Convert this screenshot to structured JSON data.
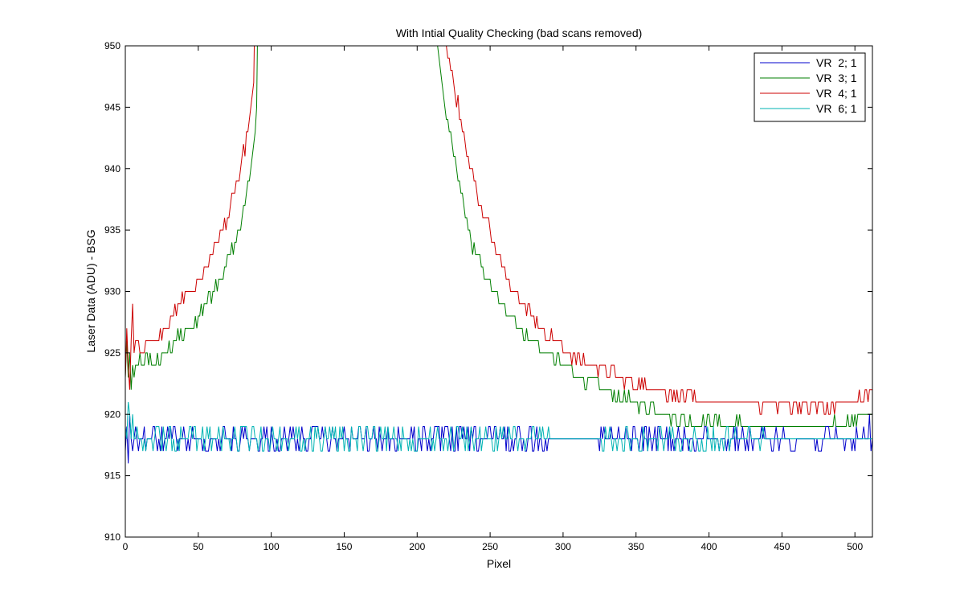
{
  "chart_data": {
    "type": "line",
    "title": "With Intial Quality Checking (bad scans removed)",
    "xlabel": "Pixel",
    "ylabel": "Laser Data (ADU) - BSG",
    "xlim": [
      0,
      512
    ],
    "ylim": [
      910,
      950
    ],
    "xticks": [
      0,
      50,
      100,
      150,
      200,
      250,
      300,
      350,
      400,
      450,
      500
    ],
    "yticks": [
      910,
      915,
      920,
      925,
      930,
      935,
      940,
      945,
      950
    ],
    "grid": false,
    "legend_position": "top-right",
    "series": [
      {
        "name": "VR  2; 1",
        "color": "#0000cc",
        "base": 918,
        "noise": "+/-1",
        "noisy_ranges": [
          [
            0,
            290
          ],
          [
            322,
            512
          ]
        ],
        "start_points": [
          [
            0,
            917
          ],
          [
            1,
            919
          ],
          [
            2,
            916
          ],
          [
            3,
            920
          ],
          [
            4,
            918
          ]
        ],
        "end_points": [
          [
            505,
            918
          ],
          [
            509,
            918
          ],
          [
            510,
            920
          ],
          [
            511,
            917
          ],
          [
            512,
            918
          ]
        ]
      },
      {
        "name": "VR  3; 1",
        "color": "#007f00",
        "points": [
          [
            0,
            923
          ],
          [
            1,
            926
          ],
          [
            2,
            923
          ],
          [
            3,
            925
          ],
          [
            4,
            922
          ],
          [
            5,
            924
          ],
          [
            6,
            923
          ],
          [
            8,
            923.5
          ],
          [
            10,
            924.5
          ],
          [
            12,
            924
          ],
          [
            14,
            925
          ],
          [
            16,
            924.5
          ],
          [
            18,
            924
          ],
          [
            20,
            924
          ],
          [
            30,
            925.5
          ],
          [
            40,
            926.5
          ],
          [
            45,
            927
          ],
          [
            50,
            928
          ],
          [
            55,
            929
          ],
          [
            60,
            930
          ],
          [
            65,
            931
          ],
          [
            70,
            932.5
          ],
          [
            75,
            934
          ],
          [
            80,
            936
          ],
          [
            85,
            939
          ],
          [
            88,
            942
          ],
          [
            91,
            946
          ],
          [
            94,
            950
          ],
          [
            214,
            950
          ],
          [
            216,
            948
          ],
          [
            220,
            944.5
          ],
          [
            225,
            941
          ],
          [
            230,
            938
          ],
          [
            235,
            935
          ],
          [
            240,
            933
          ],
          [
            245,
            931.5
          ],
          [
            250,
            930.5
          ],
          [
            255,
            929.5
          ],
          [
            260,
            928.5
          ],
          [
            265,
            928
          ],
          [
            270,
            927
          ],
          [
            275,
            926.5
          ],
          [
            280,
            926
          ],
          [
            285,
            925.5
          ],
          [
            290,
            925
          ],
          [
            295,
            924.5
          ],
          [
            300,
            924
          ],
          [
            310,
            923
          ],
          [
            320,
            922.5
          ],
          [
            330,
            922
          ],
          [
            340,
            921.5
          ],
          [
            350,
            921
          ],
          [
            360,
            920.5
          ],
          [
            370,
            920
          ],
          [
            380,
            919.5
          ],
          [
            400,
            919.3
          ],
          [
            420,
            919.2
          ],
          [
            440,
            919
          ],
          [
            460,
            919
          ],
          [
            480,
            919
          ],
          [
            500,
            919.5
          ],
          [
            505,
            920
          ],
          [
            512,
            920
          ]
        ]
      },
      {
        "name": "VR  4; 1",
        "color": "#cc0000",
        "points": [
          [
            0,
            923
          ],
          [
            1,
            927
          ],
          [
            2,
            924
          ],
          [
            3,
            922
          ],
          [
            4,
            926
          ],
          [
            5,
            929
          ],
          [
            6,
            925
          ],
          [
            8,
            926
          ],
          [
            10,
            925
          ],
          [
            15,
            926
          ],
          [
            20,
            925.5
          ],
          [
            25,
            926.5
          ],
          [
            30,
            927.5
          ],
          [
            35,
            928.5
          ],
          [
            40,
            929.5
          ],
          [
            45,
            930
          ],
          [
            50,
            931
          ],
          [
            55,
            932
          ],
          [
            60,
            933
          ],
          [
            65,
            934.5
          ],
          [
            70,
            936
          ],
          [
            75,
            938
          ],
          [
            80,
            940.5
          ],
          [
            85,
            944
          ],
          [
            88,
            947
          ],
          [
            90,
            950
          ],
          [
            220,
            950
          ],
          [
            225,
            947
          ],
          [
            230,
            944
          ],
          [
            235,
            941
          ],
          [
            240,
            938.5
          ],
          [
            245,
            936.5
          ],
          [
            250,
            935
          ],
          [
            255,
            933
          ],
          [
            260,
            931.5
          ],
          [
            265,
            930.5
          ],
          [
            270,
            929.5
          ],
          [
            275,
            928.5
          ],
          [
            280,
            928
          ],
          [
            285,
            927
          ],
          [
            290,
            926.5
          ],
          [
            295,
            926
          ],
          [
            300,
            925.5
          ],
          [
            310,
            924.5
          ],
          [
            320,
            924
          ],
          [
            330,
            923.5
          ],
          [
            340,
            923
          ],
          [
            350,
            922.5
          ],
          [
            360,
            922
          ],
          [
            370,
            921.8
          ],
          [
            380,
            921.5
          ],
          [
            400,
            921
          ],
          [
            420,
            921
          ],
          [
            440,
            920.8
          ],
          [
            460,
            920.7
          ],
          [
            480,
            920.5
          ],
          [
            500,
            921
          ],
          [
            512,
            922
          ]
        ]
      },
      {
        "name": "VR  6; 1",
        "color": "#00b3b3",
        "base": 918,
        "noise": "+/-1",
        "noisy_ranges": [
          [
            0,
            290
          ],
          [
            322,
            440
          ]
        ],
        "start_points": [
          [
            0,
            919
          ],
          [
            1,
            918
          ],
          [
            2,
            921
          ],
          [
            3,
            920
          ],
          [
            4,
            918
          ],
          [
            5,
            920
          ]
        ],
        "end_points": [
          [
            440,
            918
          ],
          [
            512,
            918
          ]
        ]
      }
    ]
  }
}
